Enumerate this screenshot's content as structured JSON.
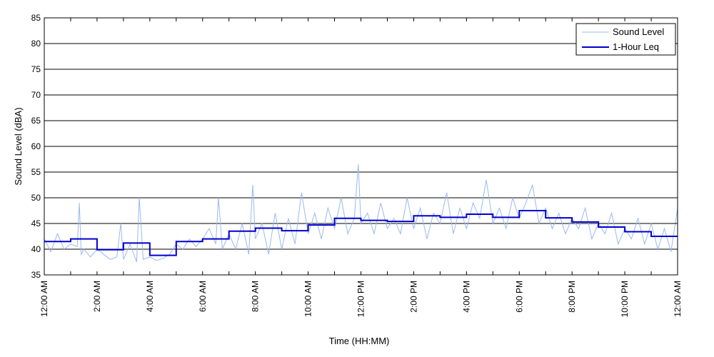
{
  "chart_data": {
    "type": "line",
    "title": "",
    "xlabel": "Time (HH:MM)",
    "ylabel": "Sound Level (dBA)",
    "x_unit": "hours after 12:00 AM",
    "xlim": [
      0,
      24
    ],
    "ylim": [
      35,
      85
    ],
    "yticks": [
      35,
      40,
      45,
      50,
      55,
      60,
      65,
      70,
      75,
      80,
      85
    ],
    "xtick_labels": [
      {
        "x": 0,
        "label": "12:00 AM"
      },
      {
        "x": 2,
        "label": "2:00 AM"
      },
      {
        "x": 4,
        "label": "4:00 AM"
      },
      {
        "x": 6,
        "label": "6:00 AM"
      },
      {
        "x": 8,
        "label": "8:00 AM"
      },
      {
        "x": 10,
        "label": "10:00 AM"
      },
      {
        "x": 12,
        "label": "12:00 PM"
      },
      {
        "x": 14,
        "label": "2:00 PM"
      },
      {
        "x": 16,
        "label": "4:00 PM"
      },
      {
        "x": 18,
        "label": "6:00 PM"
      },
      {
        "x": 20,
        "label": "8:00 PM"
      },
      {
        "x": 22,
        "label": "10:00 PM"
      },
      {
        "x": 24,
        "label": "12:00 AM"
      }
    ],
    "minor_xticks": [
      1,
      3,
      5,
      7,
      9,
      11,
      13,
      15,
      17,
      19,
      21,
      23
    ],
    "grid": "horizontal",
    "legend_position": "top-right",
    "series": [
      {
        "name": "Sound Level",
        "color": "#99b8f0",
        "style": "thin",
        "x": [
          0,
          0.25,
          0.5,
          0.75,
          1,
          1.25,
          1.33,
          1.4,
          1.5,
          1.75,
          2,
          2.25,
          2.5,
          2.75,
          2.9,
          3,
          3.25,
          3.5,
          3.6,
          3.75,
          4,
          4.25,
          4.5,
          4.75,
          5,
          5.25,
          5.5,
          5.75,
          6,
          6.25,
          6.5,
          6.6,
          6.75,
          7,
          7.25,
          7.5,
          7.75,
          7.9,
          8,
          8.25,
          8.5,
          8.75,
          9,
          9.25,
          9.5,
          9.75,
          10,
          10.25,
          10.5,
          10.75,
          11,
          11.25,
          11.5,
          11.75,
          11.9,
          12,
          12.25,
          12.5,
          12.75,
          13,
          13.25,
          13.5,
          13.75,
          14,
          14.25,
          14.5,
          14.75,
          15,
          15.25,
          15.5,
          15.75,
          16,
          16.25,
          16.5,
          16.75,
          17,
          17.25,
          17.5,
          17.75,
          18,
          18.25,
          18.5,
          18.75,
          19,
          19.25,
          19.5,
          19.75,
          20,
          20.25,
          20.5,
          20.75,
          21,
          21.25,
          21.5,
          21.75,
          22,
          22.25,
          22.5,
          22.75,
          23,
          23.25,
          23.5,
          23.75,
          24
        ],
        "y": [
          42,
          39.5,
          43,
          40,
          41,
          40.5,
          49,
          39,
          40,
          38.5,
          40,
          39,
          38,
          38.5,
          45,
          38,
          41,
          37.5,
          50,
          38,
          38.5,
          37.8,
          38.2,
          39,
          41,
          40,
          42,
          40.5,
          42,
          44,
          41,
          50,
          40,
          43,
          40,
          45,
          39,
          52.5,
          42,
          45,
          39,
          47,
          40,
          46,
          41,
          51,
          43,
          47,
          42,
          48,
          44,
          50,
          43,
          46,
          56.5,
          45,
          47,
          43,
          49,
          44,
          46,
          43,
          50,
          44,
          48,
          42,
          47,
          45,
          51,
          43,
          48,
          44,
          49,
          46,
          53.5,
          45,
          48,
          44,
          50,
          46,
          49,
          52.5,
          45,
          48,
          44,
          47,
          43,
          46,
          44,
          48,
          42,
          45,
          43,
          47,
          41,
          44,
          42,
          46,
          41,
          45,
          40,
          44,
          39.5,
          48
        ]
      },
      {
        "name": "1-Hour Leq",
        "color": "#0000cc",
        "style": "step",
        "x": [
          0,
          1,
          2,
          3,
          4,
          5,
          6,
          7,
          8,
          9,
          10,
          11,
          12,
          13,
          14,
          15,
          16,
          17,
          18,
          19,
          20,
          21,
          22,
          23,
          24
        ],
        "y": [
          41.5,
          42,
          39.9,
          41.2,
          38.8,
          41.5,
          42,
          43.5,
          44.1,
          43.6,
          44.7,
          46,
          45.6,
          45.4,
          46.5,
          46.2,
          46.8,
          46.2,
          47.5,
          46.1,
          45.3,
          44.3,
          43.4,
          42.5,
          42.5
        ]
      }
    ]
  }
}
